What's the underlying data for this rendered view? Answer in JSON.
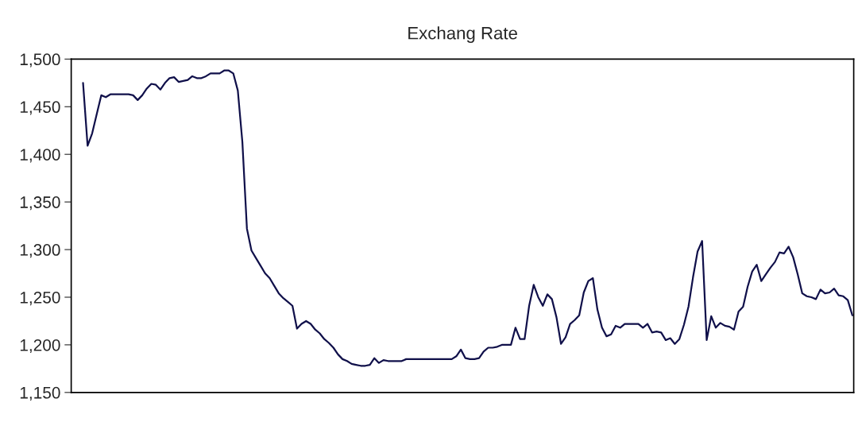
{
  "chart_data": {
    "type": "line",
    "title": "Exchang Rate",
    "categories": [
      null,
      null,
      null,
      null,
      null,
      null,
      null,
      null,
      null,
      null,
      null,
      null,
      null,
      null,
      null,
      null,
      null,
      null,
      null,
      null,
      null,
      null,
      null,
      null,
      null,
      null,
      null,
      null,
      null,
      null,
      null,
      null,
      null,
      null,
      null,
      null,
      null,
      null,
      null,
      null,
      null,
      null,
      null,
      null,
      null,
      null,
      null,
      null,
      null,
      null,
      null,
      null,
      null,
      null,
      null,
      null,
      null,
      null,
      null,
      null,
      null,
      null,
      null,
      null,
      null,
      null,
      null,
      null,
      null,
      null,
      null,
      null,
      null,
      null,
      null,
      null,
      null,
      null,
      null,
      null,
      null,
      null,
      null,
      null,
      null,
      null,
      null,
      null,
      null,
      null,
      null,
      null,
      null,
      null,
      null,
      null,
      null,
      null,
      null,
      null,
      null,
      null,
      null,
      null,
      null,
      null,
      null,
      null,
      null,
      null,
      null,
      null,
      null,
      null,
      null,
      null,
      null,
      null,
      null,
      null,
      null,
      null,
      null,
      null,
      null,
      null,
      null,
      null,
      null,
      null,
      null,
      null,
      null,
      null,
      null,
      null,
      null,
      null,
      null,
      null,
      null,
      null,
      null,
      null,
      null,
      null,
      null,
      null,
      null,
      null,
      null,
      null,
      null,
      null,
      null,
      null,
      null,
      null,
      null,
      null,
      null,
      null,
      null,
      null,
      null,
      null,
      null,
      null,
      null,
      null
    ],
    "series": [
      {
        "color": "#10104a",
        "values": [
          1475,
          1409,
          1422,
          1442,
          1462,
          1460,
          1463,
          1463,
          1463,
          1463,
          1463,
          1462,
          1457,
          1462,
          1469,
          1474,
          1473,
          1468,
          1475,
          1480,
          1481,
          1476,
          1477,
          1478,
          1482,
          1480,
          1480,
          1482,
          1485,
          1485,
          1485,
          1488,
          1488,
          1485,
          1467,
          1413,
          1322,
          1299,
          1291,
          1283,
          1275,
          1270,
          1262,
          1254,
          1249,
          1245,
          1241,
          1217,
          1222,
          1225,
          1222,
          1216,
          1212,
          1206,
          1202,
          1197,
          1190,
          1185,
          1183,
          1180,
          1179,
          1178,
          1178,
          1179,
          1186,
          1181,
          1184,
          1183,
          1183,
          1183,
          1183,
          1185,
          1185,
          1185,
          1185,
          1185,
          1185,
          1185,
          1185,
          1185,
          1185,
          1185,
          1188,
          1195,
          1186,
          1185,
          1185,
          1186,
          1193,
          1197,
          1197,
          1198,
          1200,
          1200,
          1200,
          1218,
          1206,
          1206,
          1241,
          1263,
          1250,
          1241,
          1253,
          1248,
          1229,
          1201,
          1208,
          1222,
          1226,
          1231,
          1255,
          1267,
          1270,
          1237,
          1218,
          1209,
          1211,
          1220,
          1218,
          1222,
          1222,
          1222,
          1222,
          1218,
          1222,
          1213,
          1214,
          1213,
          1205,
          1207,
          1201,
          1206,
          1221,
          1240,
          1271,
          1298,
          1309,
          1205,
          1230,
          1218,
          1223,
          1220,
          1219,
          1216,
          1235,
          1240,
          1261,
          1277,
          1284,
          1267,
          1274,
          1281,
          1287,
          1297,
          1296,
          1303,
          1292,
          1274,
          1254,
          1251,
          1250,
          1248,
          1258,
          1254,
          1255,
          1259,
          1252,
          1251,
          1247,
          1231
        ]
      }
    ],
    "ylim": [
      1150,
      1500
    ],
    "yticks": [
      {
        "value": 1150,
        "label": "1,150"
      },
      {
        "value": 1200,
        "label": "1,200"
      },
      {
        "value": 1250,
        "label": "1,250"
      },
      {
        "value": 1300,
        "label": "1,300"
      },
      {
        "value": 1350,
        "label": "1,350"
      },
      {
        "value": 1400,
        "label": "1,400"
      },
      {
        "value": 1450,
        "label": "1,450"
      },
      {
        "value": 1500,
        "label": "1,500"
      }
    ],
    "tick_labels": "y"
  }
}
